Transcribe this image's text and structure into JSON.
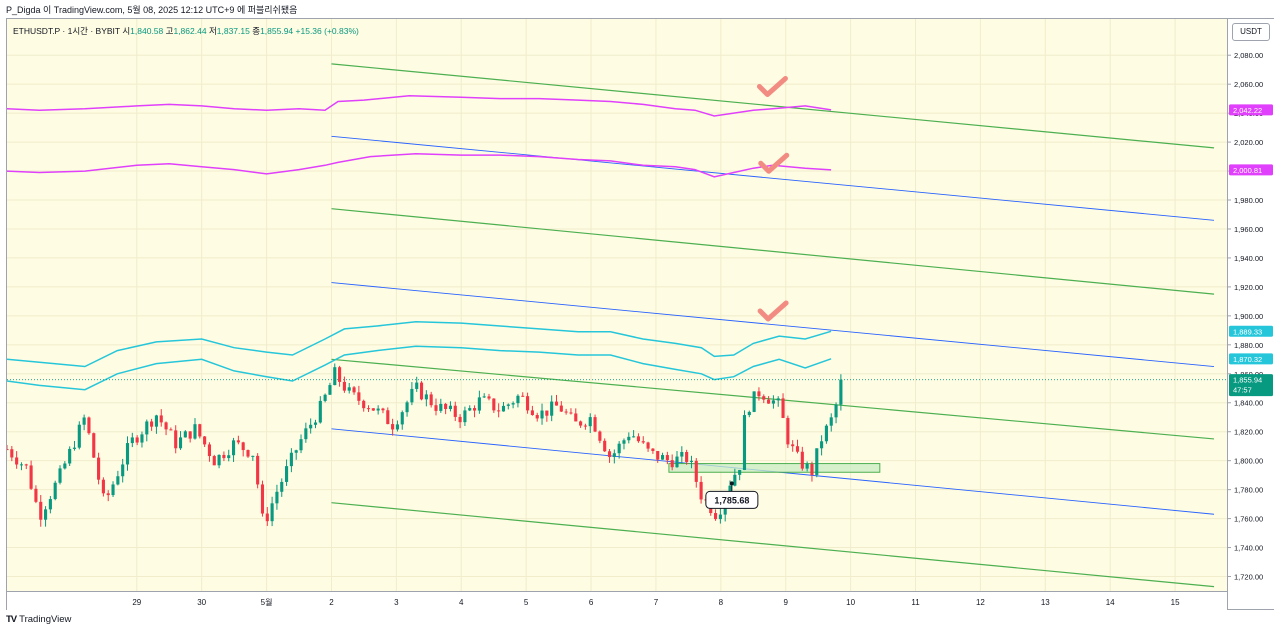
{
  "author_line": "P_Digda 이 TradingView.com, 5월 08, 2025 12:12 UTC+9 에 퍼블리쉬됐음",
  "symbol": {
    "name": "ETHUSDT.P · 1시간 · BYBIT",
    "open_label": "시",
    "open": "1,840.58",
    "high_label": "고",
    "high": "1,862.44",
    "low_label": "저",
    "low": "1,837.15",
    "close_label": "종",
    "close": "1,855.94",
    "change": "+15.36 (+0.83%)"
  },
  "currency": "USDT",
  "footer": {
    "logo": "TV",
    "brand": "TradingView"
  },
  "colors": {
    "up": "#089981",
    "down": "#f23645",
    "channel_green": "#4caf50",
    "channel_blue": "#2962ff",
    "envelope_magenta": "#e040fb",
    "envelope_cyan": "#26c6da",
    "checkmark": "#f28b82",
    "zone_fill": "#c8ecc4",
    "background": "#fefce2"
  },
  "chart_data": {
    "type": "candlestick",
    "y_ticks": [
      "1,720.00",
      "1,740.00",
      "1,760.00",
      "1,780.00",
      "1,800.00",
      "1,820.00",
      "1,840.00",
      "1,860.00",
      "1,880.00",
      "1,900.00",
      "1,920.00",
      "1,940.00",
      "1,960.00",
      "1,980.00",
      "2,000.00",
      "2,020.00",
      "2,040.00",
      "2,060.00",
      "2,080.00"
    ],
    "ylim": [
      1710,
      2105
    ],
    "x_ticks": [
      "29",
      "30",
      "5월",
      "2",
      "3",
      "4",
      "5",
      "6",
      "7",
      "8",
      "9",
      "10",
      "11",
      "12",
      "13",
      "14",
      "15"
    ],
    "xlim": [
      -2.0,
      16.8
    ],
    "price_labels": [
      {
        "text": "2,042.22",
        "value": 2042.22,
        "color": "#e040fb"
      },
      {
        "text": "2,000.81",
        "value": 2000.81,
        "color": "#e040fb"
      },
      {
        "text": "1,889.33",
        "value": 1889.33,
        "color": "#26c6da"
      },
      {
        "text": "1,870.32",
        "value": 1870.32,
        "color": "#26c6da"
      },
      {
        "text": "1,855.94",
        "value": 1855.94,
        "color": "#089981",
        "sub": "47:57"
      }
    ],
    "annotation": {
      "text": "1,785.68",
      "x": 9.17,
      "y": 1785.68
    },
    "zone": {
      "x0": 8.2,
      "x1": 11.45,
      "y_low": 1792,
      "y_high": 1798
    },
    "checkmarks": [
      {
        "x": 9.78,
        "y": 2057
      },
      {
        "x": 9.8,
        "y": 2004
      },
      {
        "x": 9.79,
        "y": 1902
      }
    ],
    "channel_lines": [
      {
        "color": "#4caf50",
        "x0": 3.0,
        "y0": 2074,
        "x1": 16.6,
        "y1": 2016
      },
      {
        "color": "#4caf50",
        "x0": 3.0,
        "y0": 1974,
        "x1": 16.6,
        "y1": 1915
      },
      {
        "color": "#4caf50",
        "x0": 3.0,
        "y0": 1870,
        "x1": 16.6,
        "y1": 1815
      },
      {
        "color": "#4caf50",
        "x0": 3.0,
        "y0": 1771,
        "x1": 16.6,
        "y1": 1713
      },
      {
        "color": "#2962ff",
        "x0": 3.0,
        "y0": 2024,
        "x1": 16.6,
        "y1": 1966
      },
      {
        "color": "#2962ff",
        "x0": 3.0,
        "y0": 1923,
        "x1": 16.6,
        "y1": 1865
      },
      {
        "color": "#2962ff",
        "x0": 3.0,
        "y0": 1822,
        "x1": 16.6,
        "y1": 1763
      }
    ],
    "candle_count": 174,
    "close_anchors": [
      [
        -2.0,
        1808
      ],
      [
        -1.7,
        1795
      ],
      [
        -1.5,
        1762
      ],
      [
        -1.2,
        1788
      ],
      [
        -0.8,
        1830
      ],
      [
        -0.6,
        1790
      ],
      [
        -0.5,
        1770
      ],
      [
        -0.1,
        1812
      ],
      [
        0.3,
        1832
      ],
      [
        0.6,
        1812
      ],
      [
        0.9,
        1822
      ],
      [
        1.2,
        1800
      ],
      [
        1.5,
        1812
      ],
      [
        1.8,
        1805
      ],
      [
        1.95,
        1755
      ],
      [
        2.15,
        1778
      ],
      [
        2.5,
        1812
      ],
      [
        2.85,
        1838
      ],
      [
        3.05,
        1860
      ],
      [
        3.3,
        1845
      ],
      [
        3.6,
        1838
      ],
      [
        3.95,
        1825
      ],
      [
        4.3,
        1850
      ],
      [
        4.6,
        1838
      ],
      [
        5.0,
        1830
      ],
      [
        5.3,
        1842
      ],
      [
        5.6,
        1835
      ],
      [
        5.9,
        1845
      ],
      [
        6.2,
        1832
      ],
      [
        6.5,
        1838
      ],
      [
        6.75,
        1825
      ],
      [
        7.0,
        1830
      ],
      [
        7.3,
        1802
      ],
      [
        7.6,
        1820
      ],
      [
        7.9,
        1805
      ],
      [
        8.2,
        1800
      ],
      [
        8.5,
        1802
      ],
      [
        8.7,
        1776
      ],
      [
        8.95,
        1762
      ],
      [
        9.1,
        1782
      ],
      [
        9.3,
        1798
      ],
      [
        9.38,
        1835
      ],
      [
        9.6,
        1848
      ],
      [
        9.9,
        1838
      ],
      [
        10.05,
        1812
      ],
      [
        10.2,
        1800
      ],
      [
        10.4,
        1792
      ],
      [
        10.55,
        1815
      ],
      [
        10.75,
        1832
      ],
      [
        10.85,
        1855.94
      ]
    ],
    "envelope_magenta": [
      {
        "last_value": 2042.22,
        "points": [
          [
            -2.0,
            2043
          ],
          [
            -1.5,
            2042
          ],
          [
            -0.8,
            2043
          ],
          [
            0.0,
            2045
          ],
          [
            0.5,
            2046
          ],
          [
            1.0,
            2045
          ],
          [
            1.5,
            2043
          ],
          [
            2.0,
            2042
          ],
          [
            2.5,
            2043
          ],
          [
            2.9,
            2042
          ],
          [
            3.1,
            2048
          ],
          [
            3.5,
            2049
          ],
          [
            4.2,
            2052
          ],
          [
            5.0,
            2051
          ],
          [
            5.6,
            2050
          ],
          [
            6.2,
            2050
          ],
          [
            6.8,
            2049
          ],
          [
            7.3,
            2048
          ],
          [
            7.8,
            2046
          ],
          [
            8.3,
            2043
          ],
          [
            8.6,
            2042
          ],
          [
            8.9,
            2038
          ],
          [
            9.2,
            2040
          ],
          [
            9.5,
            2042
          ],
          [
            9.8,
            2043
          ],
          [
            10.3,
            2045
          ],
          [
            10.7,
            2042.22
          ]
        ]
      },
      {
        "last_value": 2000.81,
        "points": [
          [
            -2.0,
            2000
          ],
          [
            -1.5,
            1999
          ],
          [
            -0.8,
            2000
          ],
          [
            0.0,
            2004
          ],
          [
            0.5,
            2005
          ],
          [
            1.0,
            2003
          ],
          [
            1.5,
            2001
          ],
          [
            2.0,
            1998
          ],
          [
            2.5,
            2001
          ],
          [
            2.9,
            2004
          ],
          [
            3.1,
            2006
          ],
          [
            3.6,
            2010
          ],
          [
            4.3,
            2012
          ],
          [
            5.0,
            2011
          ],
          [
            5.6,
            2011
          ],
          [
            6.2,
            2010
          ],
          [
            6.8,
            2008
          ],
          [
            7.3,
            2007
          ],
          [
            7.8,
            2004
          ],
          [
            8.3,
            2003
          ],
          [
            8.6,
            2001
          ],
          [
            8.9,
            1996
          ],
          [
            9.2,
            1999
          ],
          [
            9.5,
            2002
          ],
          [
            9.8,
            2004
          ],
          [
            10.3,
            2002
          ],
          [
            10.7,
            2000.81
          ]
        ]
      }
    ],
    "envelope_cyan": [
      {
        "last_value": 1889.33,
        "points": [
          [
            -2.0,
            1870
          ],
          [
            -1.5,
            1868
          ],
          [
            -0.8,
            1865
          ],
          [
            -0.3,
            1876
          ],
          [
            0.3,
            1882
          ],
          [
            1.0,
            1884
          ],
          [
            1.5,
            1878
          ],
          [
            2.0,
            1875
          ],
          [
            2.4,
            1873
          ],
          [
            2.9,
            1884
          ],
          [
            3.2,
            1891
          ],
          [
            3.7,
            1893
          ],
          [
            4.3,
            1896
          ],
          [
            5.0,
            1895
          ],
          [
            5.6,
            1893
          ],
          [
            6.2,
            1891
          ],
          [
            6.8,
            1889
          ],
          [
            7.3,
            1889
          ],
          [
            7.8,
            1884
          ],
          [
            8.3,
            1881
          ],
          [
            8.7,
            1878
          ],
          [
            8.9,
            1872
          ],
          [
            9.2,
            1873
          ],
          [
            9.5,
            1881
          ],
          [
            9.9,
            1886
          ],
          [
            10.3,
            1884
          ],
          [
            10.7,
            1889.33
          ]
        ]
      },
      {
        "last_value": 1870.32,
        "points": [
          [
            -2.0,
            1855
          ],
          [
            -1.5,
            1852
          ],
          [
            -0.8,
            1849
          ],
          [
            -0.3,
            1860
          ],
          [
            0.3,
            1867
          ],
          [
            1.0,
            1870
          ],
          [
            1.5,
            1862
          ],
          [
            2.0,
            1858
          ],
          [
            2.4,
            1855
          ],
          [
            2.9,
            1866
          ],
          [
            3.2,
            1873
          ],
          [
            3.7,
            1876
          ],
          [
            4.3,
            1879
          ],
          [
            5.0,
            1878
          ],
          [
            5.6,
            1876
          ],
          [
            6.2,
            1875
          ],
          [
            6.8,
            1873
          ],
          [
            7.3,
            1873
          ],
          [
            7.8,
            1867
          ],
          [
            8.3,
            1863
          ],
          [
            8.7,
            1860
          ],
          [
            8.9,
            1856
          ],
          [
            9.2,
            1858
          ],
          [
            9.5,
            1865
          ],
          [
            9.9,
            1870
          ],
          [
            10.3,
            1864
          ],
          [
            10.7,
            1870.32
          ]
        ]
      }
    ]
  }
}
